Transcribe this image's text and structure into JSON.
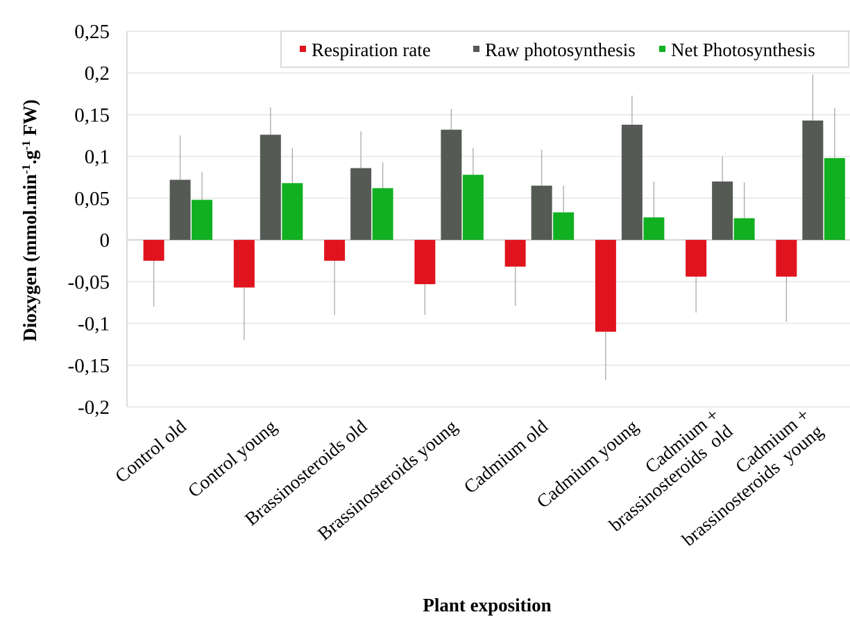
{
  "chart_data": {
    "type": "bar",
    "title": "",
    "xlabel": "Plant exposition",
    "ylabel": "Dioxygen (mmol.min⁻¹.g⁻¹ FW)",
    "ylim": [
      -0.2,
      0.25
    ],
    "yticks": [
      0.25,
      0.2,
      0.15,
      0.1,
      0.05,
      0,
      -0.05,
      -0.1,
      -0.15,
      -0.2
    ],
    "ytick_labels": [
      "0,25",
      "0,2",
      "0,15",
      "0,1",
      "0,05",
      "0",
      "-0,05",
      "-0,1",
      "-0,15",
      "-0,2"
    ],
    "grid": true,
    "legend_position": "top-right",
    "categories": [
      [
        "Control old"
      ],
      [
        "Control young"
      ],
      [
        "Brassinosteroids old"
      ],
      [
        "Brassinosteroids young"
      ],
      [
        "Cadmium old"
      ],
      [
        "Cadmium young"
      ],
      [
        "Cadmium +",
        "brassinosteroids  old"
      ],
      [
        "Cadmium +",
        "brassinosteroids  young"
      ]
    ],
    "series": [
      {
        "name": "Respiration rate",
        "color": "#e0141e",
        "values": [
          -0.025,
          -0.057,
          -0.025,
          -0.053,
          -0.032,
          -0.11,
          -0.044,
          -0.044
        ],
        "error": [
          0.055,
          0.063,
          0.065,
          0.037,
          0.047,
          0.058,
          0.043,
          0.054
        ]
      },
      {
        "name": "Raw photosynthesis",
        "color": "#555a55",
        "values": [
          0.072,
          0.126,
          0.086,
          0.132,
          0.065,
          0.138,
          0.07,
          0.143
        ],
        "error": [
          0.053,
          0.033,
          0.044,
          0.025,
          0.043,
          0.035,
          0.03,
          0.055
        ]
      },
      {
        "name": "Net Photosynthesis",
        "color": "#10b020",
        "values": [
          0.048,
          0.068,
          0.062,
          0.078,
          0.033,
          0.027,
          0.026,
          0.098
        ],
        "error": [
          0.033,
          0.042,
          0.031,
          0.032,
          0.032,
          0.043,
          0.043,
          0.06
        ]
      }
    ]
  }
}
